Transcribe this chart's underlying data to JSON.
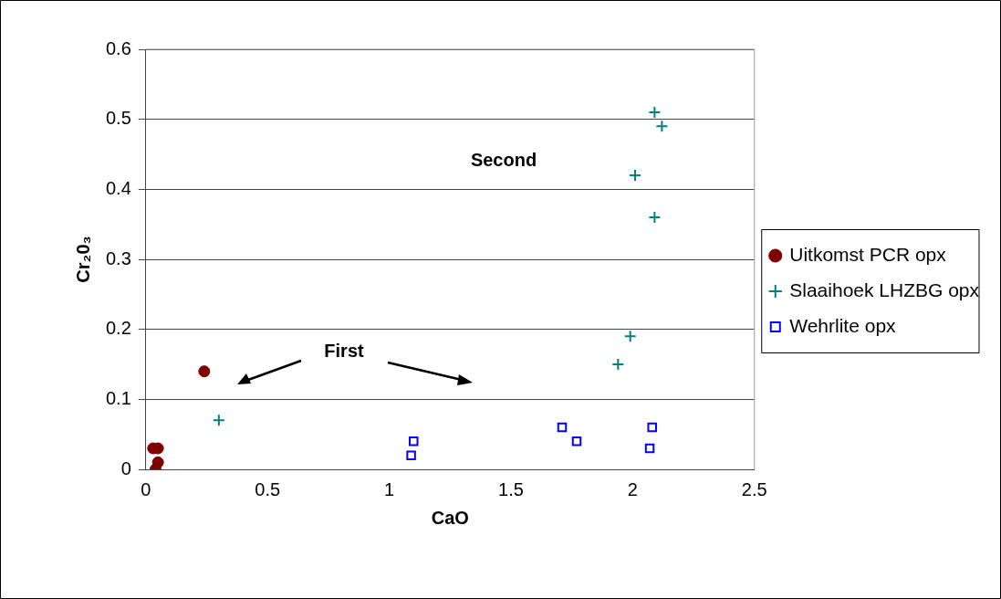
{
  "chart_data": {
    "type": "scatter",
    "xlabel": "CaO",
    "ylabel": "Cr₂0₃",
    "xlim": [
      0,
      2.5
    ],
    "xticks": [
      0,
      0.5,
      1,
      1.5,
      2,
      2.5
    ],
    "ylim": [
      0,
      0.6
    ],
    "yticks": [
      0,
      0.1,
      0.2,
      0.3,
      0.4,
      0.5,
      0.6
    ],
    "grid": "y",
    "legend": "right",
    "annotations": [
      "First",
      "Second"
    ],
    "series": [
      {
        "name": "Uitkomst PCR opx",
        "color": "#800000",
        "marker": "circle",
        "x": [
          0.24,
          0.03,
          0.05,
          0.05,
          0.04
        ],
        "values": [
          0.14,
          0.03,
          0.03,
          0.01,
          0.0
        ]
      },
      {
        "name": "Slaaihoek LHZBG opx",
        "color": "#008080",
        "marker": "cross",
        "x": [
          0.3,
          1.94,
          1.99,
          2.09,
          2.01,
          2.09,
          2.12
        ],
        "values": [
          0.07,
          0.15,
          0.19,
          0.36,
          0.42,
          0.51,
          0.49
        ]
      },
      {
        "name": "Wehrlite opx",
        "color": "#0000ff",
        "marker": "square",
        "x": [
          1.09,
          1.1,
          1.71,
          1.77,
          2.07,
          2.08
        ],
        "values": [
          0.02,
          0.04,
          0.06,
          0.04,
          0.03,
          0.06
        ]
      }
    ]
  }
}
